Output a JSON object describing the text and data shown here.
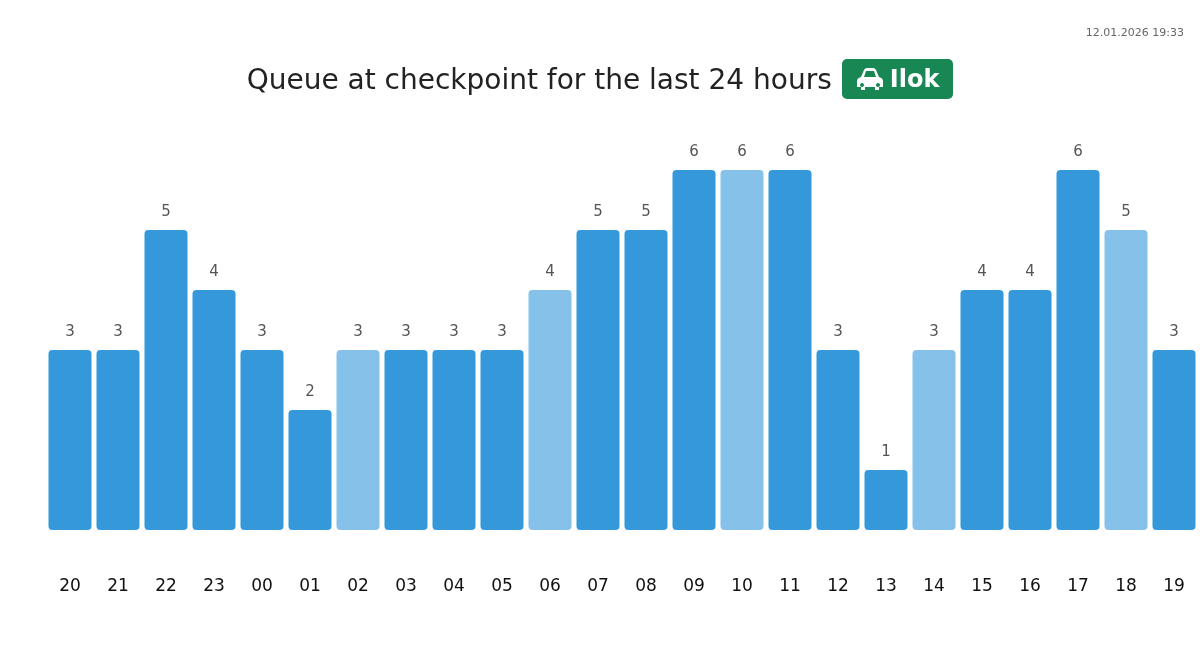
{
  "chart_data": {
    "type": "bar",
    "title": "Queue at checkpoint for the last 24 hours",
    "subtitle": "Ilok",
    "annotations": [
      "12.01.2026 19:33"
    ],
    "categories": [
      "20",
      "21",
      "22",
      "23",
      "00",
      "01",
      "02",
      "03",
      "04",
      "05",
      "06",
      "07",
      "08",
      "09",
      "10",
      "11",
      "12",
      "13",
      "14",
      "15",
      "16",
      "17",
      "18",
      "19"
    ],
    "values": [
      3,
      3,
      5,
      4,
      3,
      2,
      3,
      3,
      3,
      3,
      4,
      5,
      5,
      6,
      6,
      6,
      3,
      1,
      3,
      4,
      4,
      6,
      5,
      3
    ],
    "colors": [
      "#3498db",
      "#3498db",
      "#3498db",
      "#3498db",
      "#3498db",
      "#3498db",
      "#85c1e9",
      "#3498db",
      "#3498db",
      "#3498db",
      "#85c1e9",
      "#3498db",
      "#3498db",
      "#3498db",
      "#85c1e9",
      "#3498db",
      "#3498db",
      "#3498db",
      "#85c1e9",
      "#3498db",
      "#3498db",
      "#3498db",
      "#85c1e9",
      "#3498db"
    ],
    "data_labels": true
  }
}
